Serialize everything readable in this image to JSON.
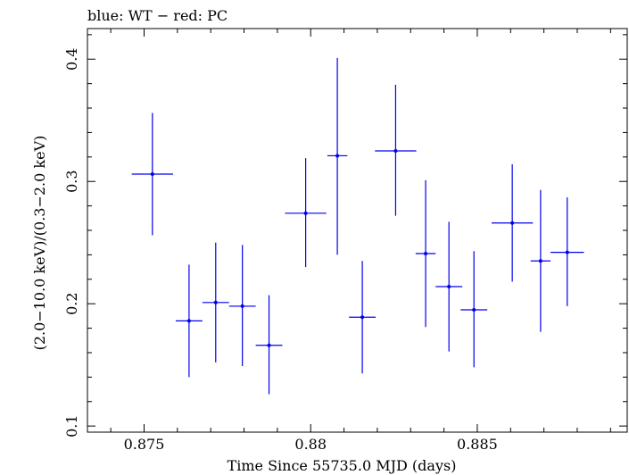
{
  "chart_data": {
    "type": "scatter",
    "title": "blue: WT − red: PC",
    "xlabel": "Time Since 55735.0 MJD (days)",
    "ylabel": "(2.0−10.0 keV)/(0.3−2.0 keV)",
    "xlim": [
      0.8733,
      0.8895
    ],
    "ylim": [
      0.095,
      0.425
    ],
    "xticks": [
      {
        "value": 0.875,
        "label": "0.875"
      },
      {
        "value": 0.88,
        "label": "0.88"
      },
      {
        "value": 0.885,
        "label": "0.885"
      }
    ],
    "yticks": [
      {
        "value": 0.1,
        "label": "0.1"
      },
      {
        "value": 0.2,
        "label": "0.2"
      },
      {
        "value": 0.3,
        "label": "0.3"
      },
      {
        "value": 0.4,
        "label": "0.4"
      }
    ],
    "series": [
      {
        "color": "#0000ee",
        "points": [
          {
            "x": 0.87525,
            "xerr": 0.00062,
            "y": 0.306,
            "ylo": 0.256,
            "yhi": 0.356
          },
          {
            "x": 0.87635,
            "xerr": 0.0004,
            "y": 0.186,
            "ylo": 0.14,
            "yhi": 0.232
          },
          {
            "x": 0.87715,
            "xerr": 0.0004,
            "y": 0.201,
            "ylo": 0.152,
            "yhi": 0.25
          },
          {
            "x": 0.87795,
            "xerr": 0.0004,
            "y": 0.198,
            "ylo": 0.149,
            "yhi": 0.248
          },
          {
            "x": 0.87875,
            "xerr": 0.0004,
            "y": 0.166,
            "ylo": 0.126,
            "yhi": 0.207
          },
          {
            "x": 0.87985,
            "xerr": 0.00062,
            "y": 0.274,
            "ylo": 0.23,
            "yhi": 0.319
          },
          {
            "x": 0.8808,
            "xerr": 0.0003,
            "y": 0.321,
            "ylo": 0.24,
            "yhi": 0.401
          },
          {
            "x": 0.88155,
            "xerr": 0.0004,
            "y": 0.189,
            "ylo": 0.143,
            "yhi": 0.235
          },
          {
            "x": 0.88255,
            "xerr": 0.00062,
            "y": 0.325,
            "ylo": 0.272,
            "yhi": 0.379
          },
          {
            "x": 0.88345,
            "xerr": 0.0003,
            "y": 0.241,
            "ylo": 0.181,
            "yhi": 0.301
          },
          {
            "x": 0.88415,
            "xerr": 0.0004,
            "y": 0.214,
            "ylo": 0.161,
            "yhi": 0.267
          },
          {
            "x": 0.8849,
            "xerr": 0.0004,
            "y": 0.195,
            "ylo": 0.148,
            "yhi": 0.243
          },
          {
            "x": 0.88605,
            "xerr": 0.00062,
            "y": 0.266,
            "ylo": 0.218,
            "yhi": 0.314
          },
          {
            "x": 0.8869,
            "xerr": 0.0003,
            "y": 0.235,
            "ylo": 0.177,
            "yhi": 0.293
          },
          {
            "x": 0.8877,
            "xerr": 0.0005,
            "y": 0.242,
            "ylo": 0.198,
            "yhi": 0.287
          }
        ]
      }
    ],
    "grid": false,
    "legend": "none"
  }
}
